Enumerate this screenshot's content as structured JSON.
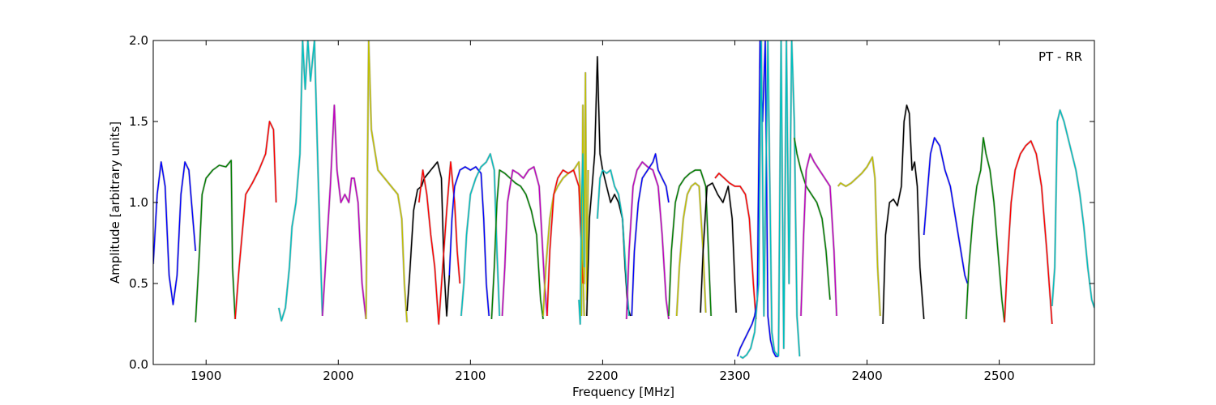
{
  "chart_data": {
    "type": "line",
    "title": "",
    "annotation": "PT - RR",
    "xlabel": "Frequency [MHz]",
    "ylabel": "Amplitude [arbitrary units]",
    "xlim": [
      1860,
      2572
    ],
    "ylim": [
      0.0,
      2.0
    ],
    "xticks": [
      1900,
      2000,
      2100,
      2200,
      2300,
      2400,
      2500
    ],
    "yticks": [
      0.0,
      0.5,
      1.0,
      1.5,
      2.0
    ],
    "xtick_labels": [
      "1900",
      "2000",
      "2100",
      "2200",
      "2300",
      "2400",
      "2500"
    ],
    "ytick_labels": [
      "0.0",
      "0.5",
      "1.0",
      "1.5",
      "2.0"
    ],
    "grid": false,
    "legend": "none",
    "background_color": "#c0c0c0",
    "series": [
      {
        "color": "#0000ff",
        "x": [
          1860,
          1863,
          1866,
          1869,
          1872,
          1875,
          1878,
          1881,
          1884,
          1887,
          1890,
          1892
        ],
        "y": [
          0.62,
          1.05,
          1.25,
          1.1,
          0.55,
          0.37,
          0.55,
          1.05,
          1.25,
          1.2,
          0.9,
          0.7
        ]
      },
      {
        "color": "#008000",
        "x": [
          1892,
          1895,
          1897,
          1900,
          1905,
          1910,
          1915,
          1919,
          1920,
          1922
        ],
        "y": [
          0.26,
          0.7,
          1.05,
          1.15,
          1.2,
          1.23,
          1.22,
          1.26,
          0.6,
          0.28
        ]
      },
      {
        "color": "#ff0000",
        "x": [
          1922,
          1925,
          1930,
          1935,
          1940,
          1945,
          1948,
          1951,
          1953
        ],
        "y": [
          0.28,
          0.6,
          1.05,
          1.12,
          1.2,
          1.3,
          1.5,
          1.45,
          1.0
        ]
      },
      {
        "color": "#00bfbf",
        "x": [
          1955,
          1957,
          1960,
          1963,
          1965,
          1968,
          1971,
          1973,
          1975,
          1977,
          1979,
          1982,
          1985,
          1988
        ],
        "y": [
          0.35,
          0.27,
          0.35,
          0.6,
          0.85,
          1.0,
          1.3,
          2.0,
          1.7,
          2.0,
          1.75,
          2.0,
          1.1,
          0.3
        ]
      },
      {
        "color": "#bf00bf",
        "x": [
          1988,
          1991,
          1994,
          1997,
          1999,
          2002,
          2005,
          2008,
          2010,
          2012,
          2015,
          2018,
          2021
        ],
        "y": [
          0.3,
          0.7,
          1.1,
          1.6,
          1.2,
          1.0,
          1.05,
          1.0,
          1.15,
          1.15,
          1.0,
          0.5,
          0.28
        ]
      },
      {
        "color": "#bfbf00",
        "x": [
          2021,
          2023,
          2025,
          2030,
          2035,
          2040,
          2045,
          2048,
          2050,
          2052
        ],
        "y": [
          0.28,
          2.0,
          1.45,
          1.2,
          1.15,
          1.1,
          1.05,
          0.9,
          0.5,
          0.26
        ]
      },
      {
        "color": "#000000",
        "x": [
          2052,
          2054,
          2057,
          2060,
          2063,
          2065,
          2068,
          2070,
          2072,
          2075,
          2078,
          2080,
          2082,
          2084
        ],
        "y": [
          0.33,
          0.55,
          0.95,
          1.08,
          1.1,
          1.15,
          1.18,
          1.2,
          1.22,
          1.25,
          1.15,
          0.6,
          0.3,
          0.55
        ]
      },
      {
        "color": "#ff0000",
        "x": [
          2061,
          2064,
          2067,
          2070,
          2073,
          2076,
          2079,
          2082,
          2085,
          2088,
          2090,
          2092
        ],
        "y": [
          1.0,
          1.2,
          1.05,
          0.8,
          0.6,
          0.25,
          0.6,
          0.95,
          1.25,
          1.0,
          0.7,
          0.5
        ]
      },
      {
        "color": "#0000ff",
        "x": [
          2084,
          2086,
          2088,
          2092,
          2096,
          2100,
          2104,
          2108,
          2110,
          2112,
          2114
        ],
        "y": [
          0.55,
          0.9,
          1.1,
          1.2,
          1.22,
          1.2,
          1.22,
          1.18,
          0.9,
          0.5,
          0.3
        ]
      },
      {
        "color": "#00bfbf",
        "x": [
          2093,
          2095,
          2097,
          2100,
          2104,
          2108,
          2112,
          2115,
          2118,
          2120,
          2122
        ],
        "y": [
          0.3,
          0.5,
          0.8,
          1.05,
          1.15,
          1.22,
          1.25,
          1.3,
          1.2,
          0.7,
          0.3
        ]
      },
      {
        "color": "#008000",
        "x": [
          2116,
          2118,
          2120,
          2122,
          2126,
          2130,
          2134,
          2138,
          2142,
          2146,
          2150,
          2153,
          2155
        ],
        "y": [
          0.28,
          0.6,
          1.0,
          1.2,
          1.18,
          1.15,
          1.12,
          1.1,
          1.05,
          0.95,
          0.8,
          0.4,
          0.28
        ]
      },
      {
        "color": "#bf00bf",
        "x": [
          2124,
          2126,
          2128,
          2132,
          2136,
          2140,
          2144,
          2148,
          2152,
          2156,
          2158
        ],
        "y": [
          0.3,
          0.6,
          1.0,
          1.2,
          1.18,
          1.15,
          1.2,
          1.22,
          1.1,
          0.5,
          0.3
        ]
      },
      {
        "color": "#bfbf00",
        "x": [
          2155,
          2157,
          2160,
          2163,
          2166,
          2170,
          2174,
          2178,
          2182,
          2184,
          2186
        ],
        "y": [
          0.3,
          0.6,
          0.9,
          1.05,
          1.1,
          1.15,
          1.18,
          1.2,
          1.25,
          0.9,
          0.3
        ]
      },
      {
        "color": "#ff0000",
        "x": [
          2158,
          2160,
          2163,
          2166,
          2170,
          2174,
          2178,
          2182,
          2185
        ],
        "y": [
          0.3,
          0.7,
          1.05,
          1.15,
          1.2,
          1.18,
          1.2,
          1.1,
          0.5
        ]
      },
      {
        "color": "#bfbf00",
        "x": [
          2184,
          2185,
          2186,
          2187,
          2188,
          2189
        ],
        "y": [
          0.3,
          1.6,
          0.5,
          1.8,
          0.4,
          1.2
        ]
      },
      {
        "color": "#00bfbf",
        "x": [
          2182,
          2183,
          2184,
          2185,
          2186
        ],
        "y": [
          0.4,
          0.25,
          1.0,
          1.3,
          0.6
        ]
      },
      {
        "color": "#000000",
        "x": [
          2188,
          2190,
          2192,
          2194,
          2196,
          2198,
          2200,
          2203,
          2206,
          2209,
          2212,
          2215,
          2217,
          2219,
          2221
        ],
        "y": [
          0.3,
          0.9,
          1.1,
          1.3,
          1.9,
          1.3,
          1.2,
          1.1,
          1.0,
          1.05,
          1.0,
          0.9,
          0.6,
          0.35,
          0.3
        ]
      },
      {
        "color": "#00bfbf",
        "x": [
          2196,
          2198,
          2200,
          2203,
          2206,
          2209,
          2212,
          2215,
          2218,
          2220
        ],
        "y": [
          0.9,
          1.15,
          1.2,
          1.18,
          1.2,
          1.1,
          1.05,
          0.9,
          0.5,
          0.3
        ]
      },
      {
        "color": "#bf00bf",
        "x": [
          2218,
          2220,
          2223,
          2226,
          2230,
          2234,
          2238,
          2242,
          2245,
          2248,
          2250
        ],
        "y": [
          0.28,
          0.7,
          1.1,
          1.2,
          1.25,
          1.22,
          1.2,
          1.1,
          0.8,
          0.4,
          0.28
        ]
      },
      {
        "color": "#0000ff",
        "x": [
          2222,
          2224,
          2227,
          2230,
          2234,
          2238,
          2240,
          2242,
          2245,
          2248,
          2250
        ],
        "y": [
          0.3,
          0.7,
          1.0,
          1.15,
          1.2,
          1.25,
          1.3,
          1.2,
          1.15,
          1.1,
          1.0
        ]
      },
      {
        "color": "#008000",
        "x": [
          2250,
          2252,
          2255,
          2258,
          2262,
          2266,
          2270,
          2274,
          2278,
          2280,
          2282
        ],
        "y": [
          0.3,
          0.7,
          1.0,
          1.1,
          1.15,
          1.18,
          1.2,
          1.2,
          1.1,
          0.7,
          0.3
        ]
      },
      {
        "color": "#bfbf00",
        "x": [
          2256,
          2258,
          2261,
          2264,
          2267,
          2270,
          2273,
          2276,
          2278
        ],
        "y": [
          0.3,
          0.6,
          0.9,
          1.05,
          1.1,
          1.12,
          1.1,
          0.7,
          0.32
        ]
      },
      {
        "color": "#000000",
        "x": [
          2274,
          2276,
          2279,
          2283,
          2287,
          2291,
          2295,
          2298,
          2300,
          2301
        ],
        "y": [
          0.32,
          0.7,
          1.1,
          1.12,
          1.05,
          1.0,
          1.1,
          0.9,
          0.5,
          0.32
        ]
      },
      {
        "color": "#ff0000",
        "x": [
          2285,
          2288,
          2292,
          2296,
          2300,
          2304,
          2308,
          2311,
          2314,
          2316
        ],
        "y": [
          1.15,
          1.18,
          1.15,
          1.12,
          1.1,
          1.1,
          1.05,
          0.9,
          0.5,
          0.28
        ]
      },
      {
        "color": "#0000ff",
        "x": [
          2302,
          2304,
          2307,
          2310,
          2313,
          2315,
          2317,
          2319,
          2321,
          2323,
          2325,
          2327,
          2329,
          2331,
          2333
        ],
        "y": [
          0.05,
          0.1,
          0.15,
          0.2,
          0.25,
          0.3,
          0.4,
          2.0,
          1.5,
          2.0,
          0.3,
          0.15,
          0.08,
          0.05,
          0.05
        ]
      },
      {
        "color": "#00bfbf",
        "x": [
          2304,
          2306,
          2309,
          2312,
          2315,
          2318,
          2320,
          2322,
          2325,
          2328,
          2330,
          2333
        ],
        "y": [
          0.05,
          0.04,
          0.06,
          0.1,
          0.2,
          0.5,
          2.0,
          0.3,
          2.0,
          0.2,
          0.08,
          0.05
        ]
      },
      {
        "color": "#00bfbf",
        "x": [
          2333,
          2335,
          2337,
          2339,
          2341,
          2343,
          2345,
          2347,
          2349
        ],
        "y": [
          0.05,
          2.0,
          0.1,
          2.0,
          0.5,
          2.0,
          1.5,
          0.3,
          0.05
        ]
      },
      {
        "color": "#008000",
        "x": [
          2345,
          2347,
          2350,
          2354,
          2358,
          2362,
          2366,
          2369,
          2371,
          2372
        ],
        "y": [
          1.4,
          1.3,
          1.2,
          1.1,
          1.05,
          1.0,
          0.9,
          0.7,
          0.5,
          0.4
        ]
      },
      {
        "color": "#bf00bf",
        "x": [
          2350,
          2352,
          2354,
          2357,
          2360,
          2364,
          2368,
          2372,
          2375,
          2377
        ],
        "y": [
          0.3,
          0.8,
          1.2,
          1.3,
          1.25,
          1.2,
          1.15,
          1.1,
          0.7,
          0.3
        ]
      },
      {
        "color": "#bfbf00",
        "x": [
          2378,
          2380,
          2384,
          2388,
          2392,
          2396,
          2400,
          2404,
          2406,
          2408,
          2410
        ],
        "y": [
          1.1,
          1.12,
          1.1,
          1.12,
          1.15,
          1.18,
          1.22,
          1.28,
          1.15,
          0.6,
          0.3
        ]
      },
      {
        "color": "#000000",
        "x": [
          2412,
          2414,
          2417,
          2420,
          2423,
          2426,
          2428,
          2430,
          2432,
          2434,
          2436,
          2438,
          2440,
          2443
        ],
        "y": [
          0.25,
          0.8,
          1.0,
          1.02,
          0.98,
          1.1,
          1.5,
          1.6,
          1.55,
          1.2,
          1.25,
          1.1,
          0.6,
          0.28
        ]
      },
      {
        "color": "#0000ff",
        "x": [
          2443,
          2445,
          2448,
          2451,
          2455,
          2459,
          2463,
          2467,
          2471,
          2474,
          2476
        ],
        "y": [
          0.8,
          1.0,
          1.3,
          1.4,
          1.35,
          1.2,
          1.1,
          0.9,
          0.7,
          0.55,
          0.5
        ]
      },
      {
        "color": "#008000",
        "x": [
          2475,
          2477,
          2480,
          2483,
          2486,
          2488,
          2490,
          2493,
          2496,
          2499,
          2502,
          2504
        ],
        "y": [
          0.28,
          0.6,
          0.9,
          1.1,
          1.2,
          1.4,
          1.3,
          1.2,
          1.0,
          0.7,
          0.4,
          0.26
        ]
      },
      {
        "color": "#ff0000",
        "x": [
          2504,
          2506,
          2509,
          2512,
          2516,
          2520,
          2524,
          2528,
          2532,
          2536,
          2540
        ],
        "y": [
          0.26,
          0.6,
          1.0,
          1.2,
          1.3,
          1.35,
          1.38,
          1.3,
          1.1,
          0.7,
          0.25
        ]
      },
      {
        "color": "#00bfbf",
        "x": [
          2540,
          2542,
          2544,
          2546,
          2549,
          2552,
          2555,
          2558,
          2561,
          2564,
          2567,
          2570,
          2572
        ],
        "y": [
          0.36,
          0.6,
          1.5,
          1.57,
          1.5,
          1.4,
          1.3,
          1.2,
          1.05,
          0.85,
          0.6,
          0.4,
          0.35
        ]
      }
    ]
  }
}
